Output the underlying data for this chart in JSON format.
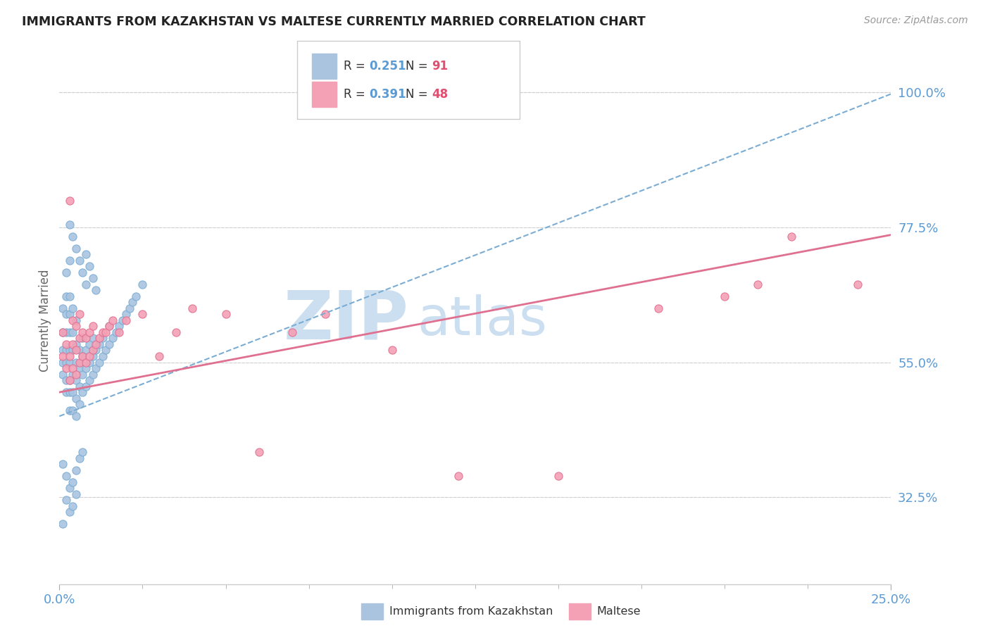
{
  "title": "IMMIGRANTS FROM KAZAKHSTAN VS MALTESE CURRENTLY MARRIED CORRELATION CHART",
  "source": "Source: ZipAtlas.com",
  "ylabel": "Currently Married",
  "xlim": [
    0.0,
    0.25
  ],
  "ylim": [
    0.18,
    1.06
  ],
  "xtick_positions": [
    0.0,
    0.25
  ],
  "xticklabels": [
    "0.0%",
    "25.0%"
  ],
  "ytick_positions": [
    0.325,
    0.55,
    0.775,
    1.0
  ],
  "ytick_labels": [
    "32.5%",
    "55.0%",
    "77.5%",
    "100.0%"
  ],
  "series1_color": "#aac4e0",
  "series2_color": "#f4a0b5",
  "series1_edge": "#7badd4",
  "series2_edge": "#e07090",
  "trendline1_color": "#7badd4",
  "trendline2_color": "#e07090",
  "background_color": "#ffffff",
  "grid_color": "#d0d0d0",
  "watermark_zip_color": "#ccdff0",
  "watermark_atlas_color": "#ccdff0",
  "tick_color": "#5b9bd5",
  "legend_R1": "0.251",
  "legend_N1": "91",
  "legend_R2": "0.391",
  "legend_N2": "48",
  "trendline1_intercept": 0.46,
  "trendline1_slope": 2.15,
  "trendline2_intercept": 0.5,
  "trendline2_slope": 1.05,
  "Kazakhstan_x": [
    0.001,
    0.001,
    0.001,
    0.001,
    0.001,
    0.002,
    0.002,
    0.002,
    0.002,
    0.002,
    0.002,
    0.002,
    0.002,
    0.003,
    0.003,
    0.003,
    0.003,
    0.003,
    0.003,
    0.003,
    0.003,
    0.003,
    0.004,
    0.004,
    0.004,
    0.004,
    0.004,
    0.004,
    0.005,
    0.005,
    0.005,
    0.005,
    0.005,
    0.005,
    0.006,
    0.006,
    0.006,
    0.006,
    0.007,
    0.007,
    0.007,
    0.007,
    0.008,
    0.008,
    0.008,
    0.009,
    0.009,
    0.009,
    0.01,
    0.01,
    0.01,
    0.011,
    0.011,
    0.012,
    0.012,
    0.013,
    0.013,
    0.014,
    0.015,
    0.015,
    0.016,
    0.017,
    0.018,
    0.019,
    0.02,
    0.021,
    0.022,
    0.023,
    0.025,
    0.001,
    0.001,
    0.002,
    0.002,
    0.003,
    0.003,
    0.004,
    0.004,
    0.005,
    0.005,
    0.006,
    0.007,
    0.003,
    0.004,
    0.005,
    0.006,
    0.007,
    0.008,
    0.008,
    0.009,
    0.01,
    0.011
  ],
  "Kazakhstan_y": [
    0.53,
    0.55,
    0.57,
    0.6,
    0.64,
    0.5,
    0.52,
    0.55,
    0.57,
    0.6,
    0.63,
    0.66,
    0.7,
    0.47,
    0.5,
    0.52,
    0.55,
    0.57,
    0.6,
    0.63,
    0.66,
    0.72,
    0.47,
    0.5,
    0.53,
    0.57,
    0.6,
    0.64,
    0.46,
    0.49,
    0.52,
    0.55,
    0.58,
    0.62,
    0.48,
    0.51,
    0.54,
    0.57,
    0.5,
    0.53,
    0.56,
    0.59,
    0.51,
    0.54,
    0.57,
    0.52,
    0.55,
    0.58,
    0.53,
    0.56,
    0.59,
    0.54,
    0.57,
    0.55,
    0.58,
    0.56,
    0.59,
    0.57,
    0.58,
    0.61,
    0.59,
    0.6,
    0.61,
    0.62,
    0.63,
    0.64,
    0.65,
    0.66,
    0.68,
    0.38,
    0.28,
    0.36,
    0.32,
    0.34,
    0.3,
    0.35,
    0.31,
    0.37,
    0.33,
    0.39,
    0.4,
    0.78,
    0.76,
    0.74,
    0.72,
    0.7,
    0.68,
    0.73,
    0.71,
    0.69,
    0.67
  ],
  "Maltese_x": [
    0.001,
    0.001,
    0.002,
    0.002,
    0.003,
    0.003,
    0.003,
    0.004,
    0.004,
    0.004,
    0.005,
    0.005,
    0.005,
    0.006,
    0.006,
    0.006,
    0.007,
    0.007,
    0.008,
    0.008,
    0.009,
    0.009,
    0.01,
    0.01,
    0.011,
    0.012,
    0.013,
    0.014,
    0.015,
    0.016,
    0.018,
    0.02,
    0.025,
    0.03,
    0.035,
    0.04,
    0.05,
    0.06,
    0.07,
    0.08,
    0.1,
    0.12,
    0.15,
    0.18,
    0.2,
    0.21,
    0.22,
    0.24
  ],
  "Maltese_y": [
    0.56,
    0.6,
    0.54,
    0.58,
    0.52,
    0.56,
    0.82,
    0.54,
    0.58,
    0.62,
    0.53,
    0.57,
    0.61,
    0.55,
    0.59,
    0.63,
    0.56,
    0.6,
    0.55,
    0.59,
    0.56,
    0.6,
    0.57,
    0.61,
    0.58,
    0.59,
    0.6,
    0.6,
    0.61,
    0.62,
    0.6,
    0.62,
    0.63,
    0.56,
    0.6,
    0.64,
    0.63,
    0.4,
    0.6,
    0.63,
    0.57,
    0.36,
    0.36,
    0.64,
    0.66,
    0.68,
    0.76,
    0.68
  ]
}
